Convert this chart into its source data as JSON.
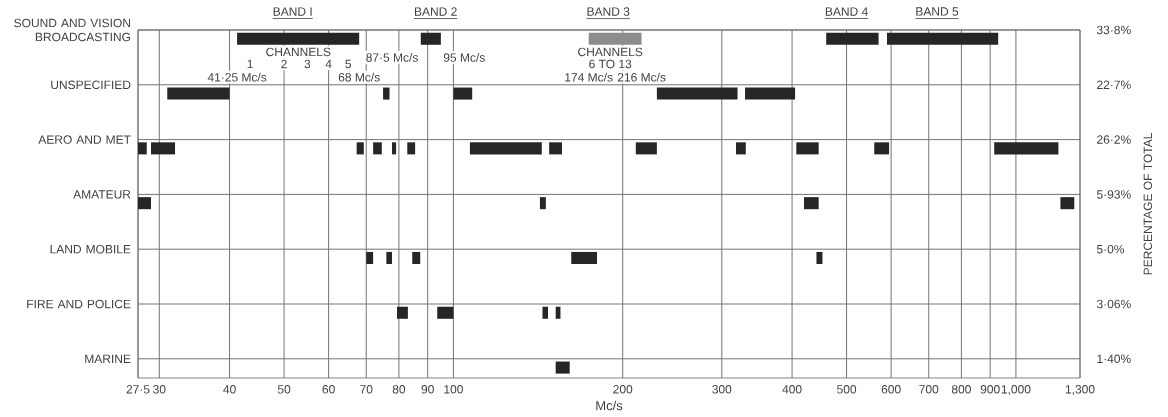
{
  "chart_data": {
    "type": "bar",
    "orientation": "horizontal",
    "log": "x",
    "grid": true,
    "xlabel": "Mc/s",
    "y2label": "PERCENTAGE OF TOTAL",
    "categories": [
      "SOUND AND VISION BROADCASTING",
      "UNSPECIFIED",
      "AERO AND MET",
      "AMATEUR",
      "LAND MOBILE",
      "FIRE AND POLICE",
      "MARINE"
    ],
    "xlim": [
      27.5,
      1300
    ],
    "xticks": [
      {
        "value": 27.5,
        "label": "27·5"
      },
      30,
      40,
      50,
      60,
      70,
      80,
      90,
      100,
      200,
      300,
      400,
      500,
      600,
      700,
      800,
      900,
      {
        "value": 1000,
        "label": "1,000"
      },
      {
        "value": 1300,
        "label": "1,300"
      }
    ],
    "series": [
      {
        "color": "#262626",
        "base": [
          41.25,
          31,
          27.5,
          27.5,
          70,
          79.4,
          152
        ],
        "values": [
          26.75,
          9,
          1,
          1.5,
          2,
          3.6,
          9
        ]
      },
      {
        "color": "#262626",
        "base": [
          87.5,
          75,
          29,
          142.5,
          76,
          93.6,
          null
        ],
        "values": [
          7.5,
          2,
          3,
          3.5,
          1.8,
          6.4,
          null
        ]
      },
      {
        "colors": [
          "#8c8c8c",
          "#262626",
          "#262626",
          "#262626",
          "#262626",
          "#262626",
          null
        ],
        "base": [
          174,
          100,
          67.3,
          420,
          84.5,
          144,
          null
        ],
        "values": [
          42,
          8,
          2,
          26,
          2.8,
          3.3,
          null
        ]
      },
      {
        "color": "#262626",
        "base": [
          460,
          230,
          72,
          1200,
          162,
          152,
          null
        ],
        "values": [
          110,
          90,
          2.6,
          70,
          18,
          3,
          null
        ]
      },
      {
        "color": "#262626",
        "base": [
          590,
          330,
          77.8,
          null,
          442,
          null,
          null
        ],
        "values": [
          340,
          75,
          1.3,
          null,
          11,
          null,
          null
        ]
      },
      {
        "color": "#262626",
        "base": [
          null,
          null,
          82.8,
          null,
          null,
          null,
          null
        ],
        "values": [
          null,
          null,
          2.7,
          null,
          null,
          null,
          null
        ]
      },
      {
        "color": "#262626",
        "base": [
          null,
          null,
          107,
          null,
          null,
          null,
          null
        ],
        "values": [
          null,
          null,
          36.6,
          null,
          null,
          null,
          null
        ]
      },
      {
        "color": "#262626",
        "base": [
          null,
          null,
          148,
          null,
          null,
          null,
          null
        ],
        "values": [
          null,
          null,
          8,
          null,
          null,
          null,
          null
        ]
      },
      {
        "color": "#262626",
        "base": [
          null,
          null,
          211,
          null,
          null,
          null,
          null
        ],
        "values": [
          null,
          null,
          19,
          null,
          null,
          null,
          null
        ]
      },
      {
        "color": "#262626",
        "base": [
          null,
          null,
          318,
          null,
          null,
          null,
          null
        ],
        "values": [
          null,
          null,
          13,
          null,
          null,
          null,
          null
        ]
      },
      {
        "color": "#262626",
        "base": [
          null,
          null,
          407,
          null,
          null,
          null,
          null
        ],
        "values": [
          null,
          null,
          39,
          null,
          null,
          null,
          null
        ]
      },
      {
        "color": "#262626",
        "base": [
          null,
          null,
          560,
          null,
          null,
          null,
          null
        ],
        "values": [
          null,
          null,
          35,
          null,
          null,
          null,
          null
        ]
      },
      {
        "color": "#262626",
        "base": [
          null,
          null,
          915,
          null,
          null,
          null,
          null
        ],
        "values": [
          null,
          null,
          275,
          null,
          null,
          null,
          null
        ]
      }
    ],
    "annotations": [
      {
        "text": "BAND I",
        "x": 51.8,
        "y": "SOUND AND VISION BROADCASTING"
      },
      {
        "text": "BAND 2",
        "x": 93,
        "y": "SOUND AND VISION BROADCASTING"
      },
      {
        "text": "BAND 3",
        "x": 188.5,
        "y": "SOUND AND VISION BROADCASTING"
      },
      {
        "text": "BAND 4",
        "x": 500,
        "y": "SOUND AND VISION BROADCASTING"
      },
      {
        "text": "BAND 5",
        "x": 724,
        "y": "SOUND AND VISION BROADCASTING"
      },
      {
        "text": "CHANNELS",
        "x": 53,
        "y": "SOUND AND VISION BROADCASTING"
      },
      {
        "text": "1",
        "x": 43.5,
        "y": "SOUND AND VISION BROADCASTING"
      },
      {
        "text": "2",
        "x": 50,
        "y": "SOUND AND VISION BROADCASTING"
      },
      {
        "text": "3",
        "x": 55,
        "y": "SOUND AND VISION BROADCASTING"
      },
      {
        "text": "4",
        "x": 60,
        "y": "SOUND AND VISION BROADCASTING"
      },
      {
        "text": "5",
        "x": 65,
        "y": "SOUND AND VISION BROADCASTING"
      },
      {
        "text": "CHANNELS",
        "x": 190,
        "y": "SOUND AND VISION BROADCASTING"
      },
      {
        "text": "6 TO 13",
        "x": 190,
        "y": "SOUND AND VISION BROADCASTING"
      },
      "41·25 Mc/s",
      "68 Mc/s",
      {
        "text": "87·5 Mc/s",
        "x": 87.5,
        "y": "SOUND AND VISION BROADCASTING"
      },
      {
        "text": "95 Mc/s",
        "x": 95,
        "y": "SOUND AND VISION BROADCASTING"
      },
      "174 Mc/s",
      "216 Mc/s",
      "33·8%",
      "22·7%",
      "26·2%",
      "5·93%",
      "5·0%",
      "3·06%",
      "1·40%"
    ]
  }
}
